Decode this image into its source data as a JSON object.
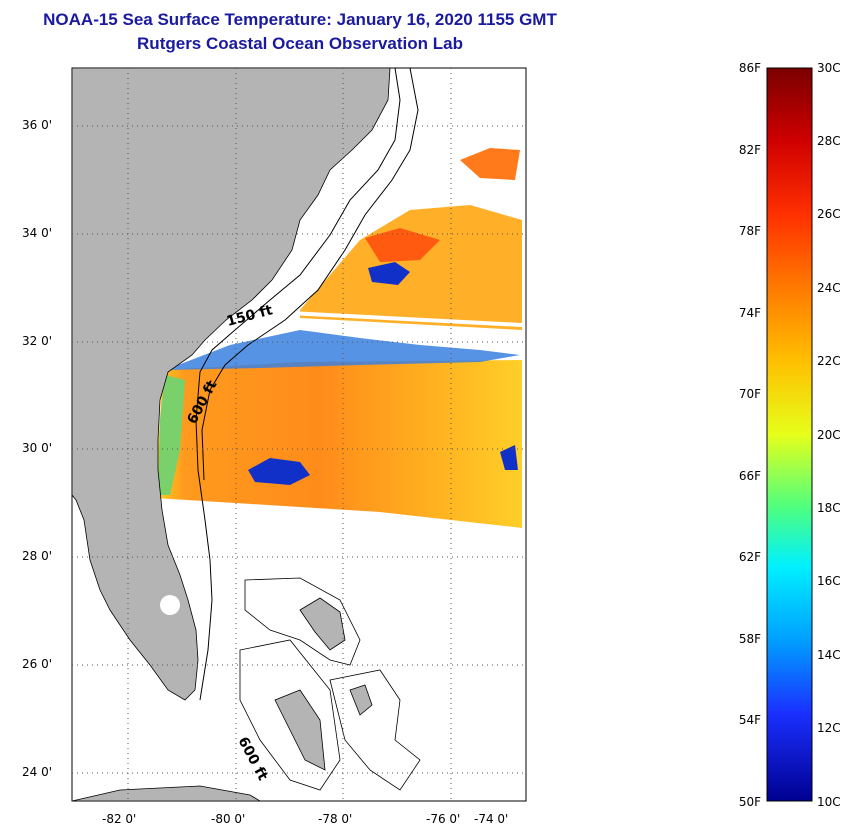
{
  "header": {
    "title": "NOAA-15 Sea Surface Temperature:  January 16, 2020 1155 GMT",
    "subtitle": "Rutgers Coastal Ocean Observation Lab"
  },
  "map": {
    "lat_labels": [
      "36 0'",
      "34 0'",
      "32 0'",
      "30 0'",
      "28 0'",
      "26 0'",
      "24 0'"
    ],
    "lon_labels": [
      "-82 0'",
      "-80 0'",
      "-78 0'",
      "-76 0'",
      "-74 0'"
    ],
    "contour_labels": [
      "150 ft",
      "600 ft",
      "600 ft"
    ]
  },
  "colorbar": {
    "f_labels": [
      "86F",
      "82F",
      "78F",
      "74F",
      "70F",
      "66F",
      "62F",
      "58F",
      "54F",
      "50F"
    ],
    "c_labels": [
      "30C",
      "28C",
      "26C",
      "24C",
      "22C",
      "20C",
      "18C",
      "16C",
      "14C",
      "12C",
      "10C"
    ],
    "colors": {
      "land": "#b4b4b4",
      "warm": "#ff8a1e",
      "cool": "#1030c8",
      "title": "#1a1aa0"
    }
  }
}
